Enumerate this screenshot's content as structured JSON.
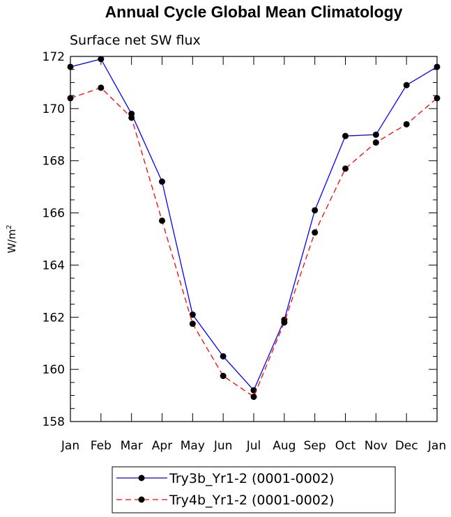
{
  "chart_data": {
    "type": "line",
    "title": "Annual Cycle Global Mean Climatology",
    "subtitle": "Surface net SW flux",
    "ylabel": "W/m",
    "ylabel_superscript": "2",
    "xlabel": "",
    "categories": [
      "Jan",
      "Feb",
      "Mar",
      "Apr",
      "May",
      "Jun",
      "Jul",
      "Aug",
      "Sep",
      "Oct",
      "Nov",
      "Dec",
      "Jan"
    ],
    "ylim": [
      158,
      172
    ],
    "yticks": [
      158,
      160,
      162,
      164,
      166,
      168,
      170,
      172
    ],
    "grid": false,
    "legend_position": "bottom-center",
    "series": [
      {
        "name": "Try3b_Yr1-2 (0001-0002)",
        "color": "#0000ff",
        "line_style": "solid",
        "marker": "filled-circle",
        "values": [
          171.6,
          171.9,
          169.8,
          167.2,
          162.1,
          160.5,
          159.2,
          161.9,
          166.1,
          168.95,
          169.0,
          170.9,
          171.6
        ]
      },
      {
        "name": "Try4b_Yr1-2 (0001-0002)",
        "color": "#ff0000",
        "line_style": "dashed",
        "marker": "filled-circle",
        "values": [
          170.4,
          170.8,
          169.65,
          165.7,
          161.75,
          159.75,
          158.95,
          161.8,
          165.25,
          167.7,
          168.7,
          169.4,
          170.4
        ]
      }
    ]
  }
}
